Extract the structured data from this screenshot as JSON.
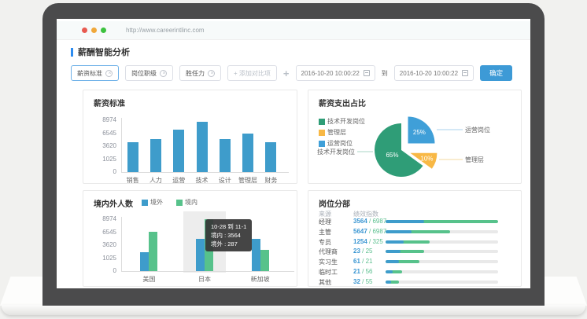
{
  "browser": {
    "url": "http://www.careerintlinc.com"
  },
  "page": {
    "title": "薪酬智能分析",
    "filters": {
      "chips": [
        {
          "label": "薪资标准",
          "active": true
        },
        {
          "label": "岗位职级",
          "active": false
        },
        {
          "label": "胜任力",
          "active": false
        }
      ],
      "add_comparison": "+ 添加对比项",
      "date_from": "2016-10-20 10:00:22",
      "to_label": "到",
      "date_to": "2016-10-20 10:00:22",
      "confirm_label": "确定"
    }
  },
  "chart_data": [
    {
      "type": "bar",
      "title": "薪资标准",
      "categories": [
        "销售",
        "人力",
        "运营",
        "技术",
        "设计",
        "管理层",
        "财务"
      ],
      "values": [
        4400,
        5200,
        7600,
        9300,
        5200,
        6650,
        4400
      ],
      "height_pct": [
        58,
        64,
        82,
        97,
        64,
        74,
        58
      ],
      "y_ticks": [
        0,
        1025,
        3620,
        6545,
        8974
      ],
      "bar_color": "#3e9ccb",
      "xlabel": "",
      "ylabel": "",
      "grid": false,
      "legend_position": "none"
    },
    {
      "type": "pie",
      "title": "薪资支出占比",
      "slices": [
        {
          "label": "运营岗位",
          "pct": 25,
          "pct_text": "25%",
          "color": "#3f9fd8",
          "explode": 12,
          "label_r": 0.6
        },
        {
          "label": "管理层",
          "pct": 10,
          "pct_text": "10%",
          "color": "#f8b845",
          "explode": 12,
          "label_r": 0.65
        },
        {
          "label": "技术开发岗位",
          "pct": 65,
          "pct_text": "65%",
          "color": "#2f9d77",
          "explode": 0,
          "label_r": 0.38
        }
      ],
      "legend": [
        {
          "label": "技术开发岗位",
          "color": "#2f9d77"
        },
        {
          "label": "管理层",
          "color": "#f8b845"
        },
        {
          "label": "运营岗位",
          "color": "#3f9fd8"
        }
      ],
      "legend_position": "left"
    },
    {
      "type": "grouped-bar",
      "title": "境内外人数",
      "categories": [
        "美国",
        "日本",
        "新加坡"
      ],
      "series": [
        {
          "name": "境外",
          "color": "#3e9ccb",
          "values": [
            2500,
            5700,
            5700
          ],
          "height_pct": [
            36,
            62,
            62
          ]
        },
        {
          "name": "境内",
          "color": "#57c28b",
          "values": [
            7200,
            9800,
            3100
          ],
          "height_pct": [
            76,
            100,
            41
          ]
        }
      ],
      "y_ticks": [
        0,
        1025,
        3620,
        6545,
        8974
      ],
      "highlight_index": 1,
      "tooltip": {
        "line1": "10-28 到 11-1",
        "line2": "境内 : 3564",
        "line3": "境外 : 287"
      },
      "legend_position": "top"
    },
    {
      "type": "hbar-list",
      "title": "岗位分部",
      "col1_header": "来源",
      "col2_header": "绩效指数",
      "rows": [
        {
          "label": "经理",
          "value1": "3564",
          "value2": "6987",
          "blue_pct": 34,
          "green_pct": 100
        },
        {
          "label": "主管",
          "value1": "5647",
          "value2": "6987",
          "blue_pct": 23,
          "green_pct": 57
        },
        {
          "label": "专员",
          "value1": "1254",
          "value2": "325",
          "blue_pct": 16,
          "green_pct": 39
        },
        {
          "label": "代理商",
          "value1": "23",
          "value2": "25",
          "blue_pct": 13,
          "green_pct": 34
        },
        {
          "label": "实习生",
          "value1": "61",
          "value2": "21",
          "blue_pct": 12,
          "green_pct": 30
        },
        {
          "label": "临时工",
          "value1": "21",
          "value2": "56",
          "blue_pct": 6,
          "green_pct": 15
        },
        {
          "label": "其他",
          "value1": "32",
          "value2": "55",
          "blue_pct": 5,
          "green_pct": 12
        }
      ]
    }
  ],
  "colors": {
    "accent_blue": "#3e9ccb",
    "green": "#57c28b",
    "teal": "#2f9d77",
    "yellow": "#f8b845",
    "button_blue": "#3d9ad6",
    "title_bar_blue": "#2d8cf0",
    "value_blue": "#3a96d2",
    "value_green": "#5abf8e",
    "traffic_red": "#e85a50",
    "traffic_yellow": "#f0a83b",
    "traffic_green": "#3dc23f"
  }
}
